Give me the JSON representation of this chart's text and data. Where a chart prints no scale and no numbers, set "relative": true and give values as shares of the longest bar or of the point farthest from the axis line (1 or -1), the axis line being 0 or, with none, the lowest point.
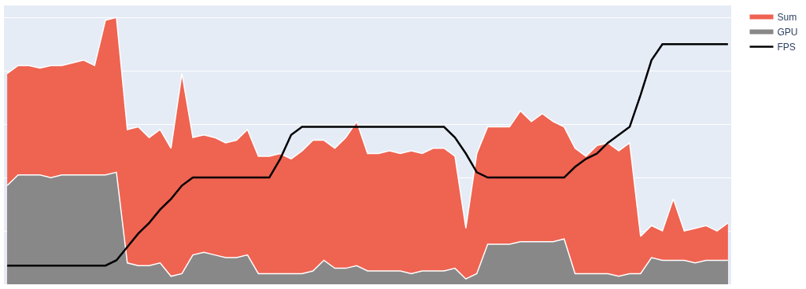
{
  "chart_data": {
    "type": "area",
    "relative": true,
    "grid": true,
    "legend": "top right",
    "categories": [
      null,
      null,
      null,
      null,
      null,
      null,
      null,
      null,
      null,
      null,
      null,
      null,
      null,
      null,
      null,
      null,
      null,
      null,
      null,
      null,
      null,
      null,
      null,
      null,
      null,
      null,
      null,
      null,
      null,
      null,
      null,
      null,
      null,
      null,
      null,
      null,
      null,
      null,
      null,
      null,
      null,
      null,
      null,
      null,
      null,
      null,
      null,
      null,
      null,
      null,
      null,
      null,
      null,
      null,
      null,
      null,
      null,
      null,
      null,
      null,
      null,
      null,
      null,
      null,
      null,
      null,
      null
    ],
    "series": [
      {
        "name": "Sum",
        "color": "#ef6351",
        "values": [
          0.79,
          0.82,
          0.82,
          0.81,
          0.82,
          0.82,
          0.83,
          0.84,
          0.82,
          0.99,
          1.0,
          0.58,
          0.59,
          0.55,
          0.58,
          0.51,
          0.79,
          0.55,
          0.56,
          0.55,
          0.53,
          0.54,
          0.58,
          0.48,
          0.48,
          0.49,
          0.47,
          0.5,
          0.54,
          0.54,
          0.51,
          0.55,
          0.61,
          0.49,
          0.49,
          0.5,
          0.49,
          0.5,
          0.49,
          0.51,
          0.51,
          0.48,
          0.21,
          0.49,
          0.59,
          0.59,
          0.59,
          0.65,
          0.61,
          0.64,
          0.61,
          0.59,
          0.51,
          0.48,
          0.52,
          0.53,
          0.5,
          0.53,
          0.18,
          0.22,
          0.2,
          0.32,
          0.2,
          0.21,
          0.22,
          0.2,
          0.23
        ]
      },
      {
        "name": "GPU",
        "color": "#888888",
        "values": [
          0.37,
          0.41,
          0.41,
          0.41,
          0.4,
          0.41,
          0.41,
          0.41,
          0.41,
          0.41,
          0.42,
          0.08,
          0.07,
          0.07,
          0.08,
          0.03,
          0.04,
          0.11,
          0.12,
          0.11,
          0.1,
          0.1,
          0.11,
          0.04,
          0.04,
          0.04,
          0.04,
          0.04,
          0.05,
          0.09,
          0.06,
          0.06,
          0.07,
          0.05,
          0.05,
          0.05,
          0.05,
          0.04,
          0.05,
          0.05,
          0.05,
          0.06,
          0.02,
          0.04,
          0.15,
          0.15,
          0.15,
          0.16,
          0.16,
          0.16,
          0.16,
          0.17,
          0.04,
          0.04,
          0.04,
          0.04,
          0.03,
          0.04,
          0.04,
          0.1,
          0.09,
          0.09,
          0.09,
          0.08,
          0.09,
          0.09,
          0.09
        ]
      },
      {
        "name": "FPS",
        "type": "line",
        "color": "#000000",
        "values": [
          0.07,
          0.07,
          0.07,
          0.07,
          0.07,
          0.07,
          0.07,
          0.07,
          0.07,
          0.07,
          0.09,
          0.14,
          0.19,
          0.23,
          0.28,
          0.32,
          0.37,
          0.4,
          0.4,
          0.4,
          0.4,
          0.4,
          0.4,
          0.4,
          0.4,
          0.47,
          0.56,
          0.59,
          0.59,
          0.59,
          0.59,
          0.59,
          0.59,
          0.59,
          0.59,
          0.59,
          0.59,
          0.59,
          0.59,
          0.59,
          0.59,
          0.55,
          0.49,
          0.42,
          0.4,
          0.4,
          0.4,
          0.4,
          0.4,
          0.4,
          0.4,
          0.4,
          0.44,
          0.47,
          0.49,
          0.53,
          0.56,
          0.59,
          0.71,
          0.84,
          0.9,
          0.9,
          0.9,
          0.9,
          0.9,
          0.9,
          0.9
        ]
      }
    ]
  }
}
